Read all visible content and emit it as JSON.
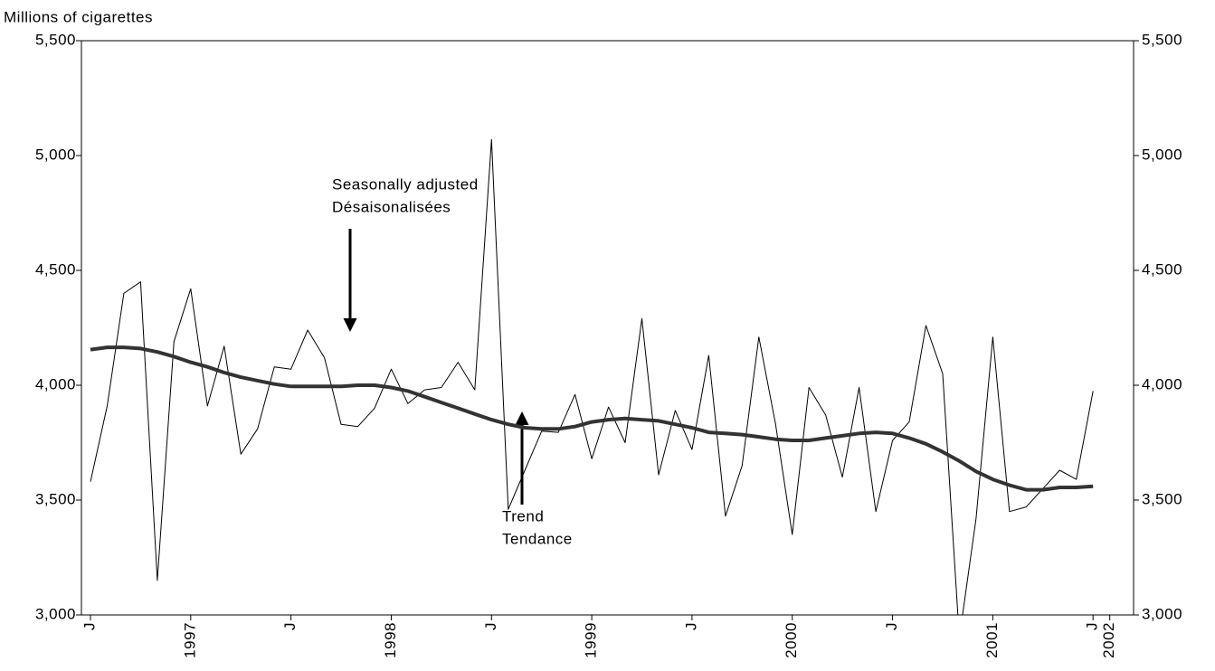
{
  "chart_data": {
    "type": "line",
    "y_axis_label": "Millions of cigarettes",
    "categories": [
      "J",
      null,
      null,
      null,
      null,
      null,
      "1997",
      null,
      null,
      null,
      null,
      null,
      "J",
      null,
      null,
      null,
      null,
      null,
      "1998",
      null,
      null,
      null,
      null,
      null,
      "J",
      null,
      null,
      null,
      null,
      null,
      "1999",
      null,
      null,
      null,
      null,
      null,
      "J",
      null,
      null,
      null,
      null,
      null,
      "2000",
      null,
      null,
      null,
      null,
      null,
      "J",
      null,
      null,
      null,
      null,
      null,
      "2001",
      null,
      null,
      null,
      null,
      null,
      "J",
      "2002"
    ],
    "series": [
      {
        "color": "#000000",
        "line_width": 1,
        "values": [
          3580,
          3910,
          4400,
          4450,
          3150,
          4190,
          4420,
          3910,
          4170,
          3700,
          3810,
          4080,
          4070,
          4240,
          4120,
          3830,
          3820,
          3900,
          4070,
          3920,
          3980,
          3990,
          4100,
          3980,
          5070,
          3460,
          3630,
          3800,
          3795,
          3960,
          3680,
          3905,
          3750,
          4290,
          3610,
          3890,
          3720,
          4130,
          3430,
          3650,
          4210,
          3830,
          3350,
          3990,
          3870,
          3600,
          3990,
          3450,
          3760,
          3840,
          4260,
          4050,
          2900,
          3420,
          4210,
          3450,
          3470,
          3550,
          3630,
          3590,
          3975,
          null
        ]
      },
      {
        "color": "#333333",
        "line_width": 4,
        "values": [
          4155,
          4165,
          4165,
          4160,
          4145,
          4125,
          4100,
          4080,
          4055,
          4035,
          4020,
          4005,
          3995,
          3995,
          3995,
          3995,
          4000,
          4000,
          3990,
          3975,
          3950,
          3925,
          3900,
          3875,
          3850,
          3830,
          3815,
          3810,
          3810,
          3820,
          3840,
          3850,
          3855,
          3850,
          3845,
          3830,
          3815,
          3795,
          3790,
          3785,
          3775,
          3765,
          3760,
          3760,
          3770,
          3780,
          3790,
          3795,
          3790,
          3770,
          3745,
          3710,
          3670,
          3625,
          3590,
          3565,
          3545,
          3545,
          3555,
          3555,
          3560,
          null
        ]
      }
    ],
    "ylim": [
      3000,
      5500
    ],
    "yticks": [
      {
        "value": 3000,
        "label": "3,000"
      },
      {
        "value": 3500,
        "label": "3,500"
      },
      {
        "value": 4000,
        "label": "4,000"
      },
      {
        "value": 4500,
        "label": "4,500"
      },
      {
        "value": 5000,
        "label": "5,000"
      },
      {
        "value": 5500,
        "label": "5,500"
      }
    ],
    "y2lim": [
      3000,
      5500
    ],
    "y2ticks": [
      {
        "value": 3000,
        "label": "3,000"
      },
      {
        "value": 3500,
        "label": "3,500"
      },
      {
        "value": 4000,
        "label": "4,000"
      },
      {
        "value": 4500,
        "label": "4,500"
      },
      {
        "value": 5000,
        "label": "5,000"
      },
      {
        "value": 5500,
        "label": "5,500"
      }
    ],
    "annotations": [
      {
        "lines": [
          "Seasonally adjusted",
          "Désaisonalisées"
        ]
      },
      {
        "lines": [
          "Trend",
          "Tendance"
        ]
      }
    ]
  }
}
